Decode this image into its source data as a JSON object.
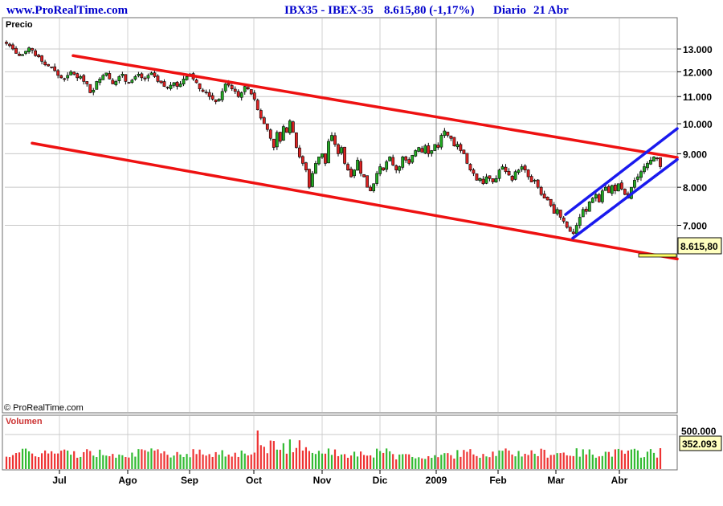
{
  "header": {
    "site": "www.ProRealTime.com",
    "instrument": "IBX35 - IBEX-35",
    "last": "8.615,80 (-1,17%)",
    "period": "Diario",
    "date": "21 Abr"
  },
  "price_panel": {
    "label": "Precio",
    "copyright": "© ProRealTime.com",
    "current_price_tag": "8.615,80"
  },
  "volume_panel": {
    "label": "Volumen",
    "tick": "500.000",
    "current_volume_tag": "352.093"
  },
  "colors": {
    "up": "#22aa22",
    "down": "#dd2222",
    "channel": "#ee1111",
    "trend": "#1a1aee",
    "header_text": "#0000cc",
    "tag_bg": "#ffffc0"
  },
  "chart_data": {
    "type": "candlestick",
    "title": "IBX35 - IBEX-35",
    "y_axis": {
      "ticks": [
        "13.000",
        "12.000",
        "11.000",
        "10.000",
        "9.000",
        "8.000",
        "7.000"
      ],
      "scale": "log"
    },
    "x_axis": {
      "ticks": [
        "Jul",
        "Ago",
        "Sep",
        "Oct",
        "Nov",
        "Dic",
        "2009",
        "Feb",
        "Mar",
        "Abr"
      ]
    },
    "close_path_daily_approx": [
      13250,
      13150,
      13000,
      12800,
      12700,
      12750,
      12900,
      13050,
      12950,
      12700,
      12650,
      12450,
      12300,
      12250,
      12200,
      12050,
      11850,
      11750,
      11700,
      11850,
      12000,
      11900,
      11750,
      11800,
      11600,
      11500,
      11150,
      11250,
      11600,
      11700,
      11850,
      11950,
      11700,
      11500,
      11600,
      11800,
      11900,
      11600,
      11550,
      11650,
      11800,
      11900,
      11750,
      11700,
      11850,
      11950,
      11800,
      11600,
      11550,
      11400,
      11350,
      11450,
      11550,
      11400,
      11500,
      11700,
      11800,
      11900,
      11700,
      11550,
      11300,
      11200,
      11150,
      11000,
      10900,
      10800,
      10900,
      11200,
      11500,
      11450,
      11300,
      11200,
      11000,
      11150,
      11400,
      11300,
      11100,
      10900,
      10500,
      10200,
      10000,
      9800,
      9500,
      9200,
      9700,
      9400,
      9900,
      9700,
      10100,
      9700,
      9200,
      8900,
      8700,
      8500,
      8000,
      8400,
      8700,
      8900,
      9000,
      8700,
      9400,
      9600,
      9300,
      9000,
      9200,
      8700,
      8500,
      8300,
      8500,
      8800,
      8400,
      8300,
      8000,
      7900,
      8100,
      8400,
      8600,
      8500,
      8750,
      8900,
      8650,
      8500,
      8600,
      8900,
      8800,
      8700,
      8950,
      9100,
      9200,
      9050,
      9250,
      9000,
      9100,
      9300,
      9200,
      9600,
      9750,
      9600,
      9500,
      9250,
      9300,
      9100,
      9000,
      8700,
      8500,
      8400,
      8200,
      8250,
      8100,
      8300,
      8250,
      8150,
      8250,
      8500,
      8600,
      8450,
      8350,
      8200,
      8450,
      8500,
      8600,
      8500,
      8300,
      8150,
      8200,
      8000,
      7800,
      7700,
      7650,
      7500,
      7300,
      7400,
      7200,
      7100,
      6950,
      6850,
      6800,
      7000,
      7200,
      7400,
      7350,
      7600,
      7700,
      7800,
      7600,
      7900,
      8000,
      7850,
      8050,
      7900,
      8100,
      7950,
      7800,
      7700,
      8000,
      8200,
      8300,
      8450,
      8600,
      8700,
      8800,
      8900,
      8850,
      8600
    ],
    "volume_last": 352093,
    "volume_ticks": [
      "500.000"
    ],
    "channel_lines": [
      {
        "color": "red",
        "from": [
          "2008-06-23",
          12700
        ],
        "to": [
          "2009-04-21",
          8900
        ]
      },
      {
        "color": "red",
        "from": [
          "2008-06-17",
          9350
        ],
        "to": [
          "2009-04-21",
          6450
        ]
      },
      {
        "color": "blue",
        "from": [
          "2009-03-06",
          7250
        ],
        "to": [
          "2009-04-21",
          9800
        ]
      },
      {
        "color": "blue",
        "from": [
          "2009-03-09",
          6700
        ],
        "to": [
          "2009-04-21",
          8750
        ]
      }
    ],
    "last_price": 8615.8,
    "change_pct": -1.17
  }
}
